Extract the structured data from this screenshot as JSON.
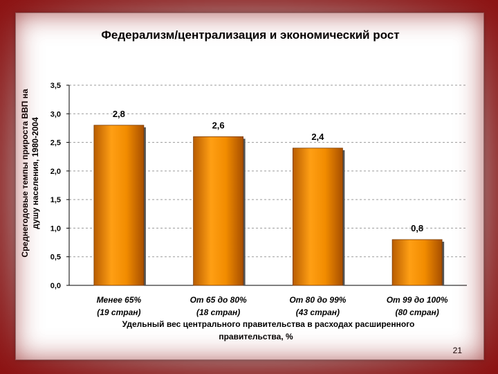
{
  "slide": {
    "page_number": "21"
  },
  "chart_data": {
    "type": "bar",
    "title": "Федерализм/централизация и экономический рост",
    "ylabel_lines": [
      "Среднегодовые темпы прироста ВВП на",
      "душу населения, 1980-2004"
    ],
    "xlabel_lines": [
      "Удельный вес центрального правительства в расходах расширенного",
      "правительства, %"
    ],
    "categories": [
      {
        "line1": "Менее 65%",
        "line2": "(19 стран)"
      },
      {
        "line1": "От 65 до 80%",
        "line2": "(18 стран)"
      },
      {
        "line1": "От 80 до 99%",
        "line2": "(43 стран)"
      },
      {
        "line1": "От 99 до 100%",
        "line2": "(80 стран)"
      }
    ],
    "values": [
      2.8,
      2.6,
      2.4,
      0.8
    ],
    "value_labels": [
      "2,8",
      "2,6",
      "2,4",
      "0,8"
    ],
    "yticks": [
      "0,0",
      "0,5",
      "1,0",
      "1,5",
      "2,0",
      "2,5",
      "3,0",
      "3,5"
    ],
    "ylim": [
      0,
      3.5
    ],
    "grid": true,
    "bar_color": "#f28c00"
  }
}
